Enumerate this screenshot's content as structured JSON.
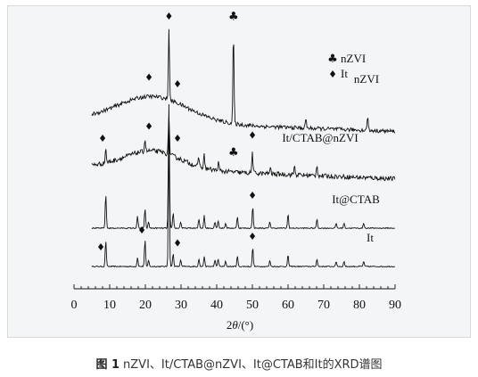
{
  "caption": {
    "label": "图 1",
    "text": "nZVI、It/CTAB@nZVI、It@CTAB和It的XRD谱图"
  },
  "chart_data": {
    "type": "line",
    "title": "",
    "xlabel_prefix": "2",
    "xlabel_theta": "θ",
    "xlabel_suffix": "/(°)",
    "ylabel": "",
    "xlim": [
      0,
      90
    ],
    "xticks": [
      0,
      10,
      20,
      30,
      40,
      50,
      60,
      70,
      80,
      90
    ],
    "xticklabels": [
      "0",
      "10",
      "20",
      "30",
      "40",
      "50",
      "60",
      "70",
      "80",
      "90"
    ],
    "grid": false,
    "legend": {
      "placement": "top-right",
      "entries": [
        {
          "symbol": "♣",
          "label": "nZVI"
        },
        {
          "symbol": "♦",
          "label": "It"
        }
      ]
    },
    "series": [
      {
        "name": "nZVI",
        "offset": 150,
        "noise": 6,
        "hump": {
          "center": 22,
          "width": 14,
          "height": 40
        },
        "slope": -0.2,
        "peaks": [
          [
            26.6,
            108
          ],
          [
            44.7,
            140
          ],
          [
            65,
            15
          ],
          [
            82.3,
            22
          ]
        ],
        "markers": [
          {
            "x": 21,
            "symbol": "♦"
          },
          {
            "x": 26.6,
            "symbol": "♦"
          },
          {
            "x": 29,
            "symbol": "♦"
          },
          {
            "x": 44.7,
            "symbol": "♣"
          }
        ],
        "label_x": 82
      },
      {
        "name": "It/CTAB@nZVI",
        "offset": 108,
        "noise": 7,
        "hump": {
          "center": 22,
          "width": 11,
          "height": 28
        },
        "slope": -0.22,
        "peaks": [
          [
            8.9,
            22
          ],
          [
            19.9,
            18
          ],
          [
            26.6,
            62
          ],
          [
            35,
            14
          ],
          [
            36.5,
            20
          ],
          [
            40.5,
            12
          ],
          [
            50,
            32
          ],
          [
            55,
            10
          ],
          [
            61.8,
            14
          ],
          [
            68.1,
            18
          ]
        ],
        "markers": [
          {
            "x": 8,
            "symbol": "♦"
          },
          {
            "x": 21,
            "symbol": "♦"
          },
          {
            "x": 29,
            "symbol": "♦"
          },
          {
            "x": 44.7,
            "symbol": "♣"
          },
          {
            "x": 50,
            "symbol": "♦"
          }
        ],
        "label_x": 69
      },
      {
        "name": "It@CTAB",
        "offset": 52,
        "noise": 1.6,
        "hump": {
          "center": 20,
          "width": 1,
          "height": 0
        },
        "slope": 0,
        "peaks": [
          [
            8.9,
            52
          ],
          [
            17.8,
            18
          ],
          [
            19.9,
            30
          ],
          [
            20.9,
            10
          ],
          [
            26.6,
            190
          ],
          [
            27.8,
            24
          ],
          [
            29.9,
            10
          ],
          [
            35,
            14
          ],
          [
            36.5,
            20
          ],
          [
            39.5,
            10
          ],
          [
            40.4,
            12
          ],
          [
            42.5,
            8
          ],
          [
            45.8,
            18
          ],
          [
            50.1,
            34
          ],
          [
            54.9,
            10
          ],
          [
            60,
            22
          ],
          [
            68.1,
            14
          ],
          [
            73.5,
            8
          ],
          [
            75.7,
            8
          ],
          [
            81.2,
            8
          ]
        ],
        "markers": [
          {
            "x": 50,
            "symbol": "♦"
          }
        ],
        "label_x": 79
      },
      {
        "name": "It",
        "offset": 0,
        "noise": 1.6,
        "hump": {
          "center": 20,
          "width": 1,
          "height": 0
        },
        "slope": 0,
        "peaks": [
          [
            8.9,
            40
          ],
          [
            17.8,
            14
          ],
          [
            19.9,
            40
          ],
          [
            20.9,
            10
          ],
          [
            26.6,
            205
          ],
          [
            27.8,
            20
          ],
          [
            29.9,
            10
          ],
          [
            35,
            12
          ],
          [
            36.5,
            16
          ],
          [
            39.5,
            10
          ],
          [
            40.4,
            12
          ],
          [
            42.5,
            8
          ],
          [
            45.8,
            16
          ],
          [
            50.1,
            30
          ],
          [
            54.9,
            9
          ],
          [
            60,
            18
          ],
          [
            68.1,
            12
          ],
          [
            73.5,
            8
          ],
          [
            75.7,
            8
          ],
          [
            81.2,
            8
          ]
        ],
        "markers": [
          {
            "x": 7.5,
            "symbol": "♦"
          },
          {
            "x": 19,
            "symbol": "♦"
          },
          {
            "x": 29,
            "symbol": "♦"
          },
          {
            "x": 50,
            "symbol": "♦"
          }
        ],
        "label_x": 83
      }
    ]
  }
}
